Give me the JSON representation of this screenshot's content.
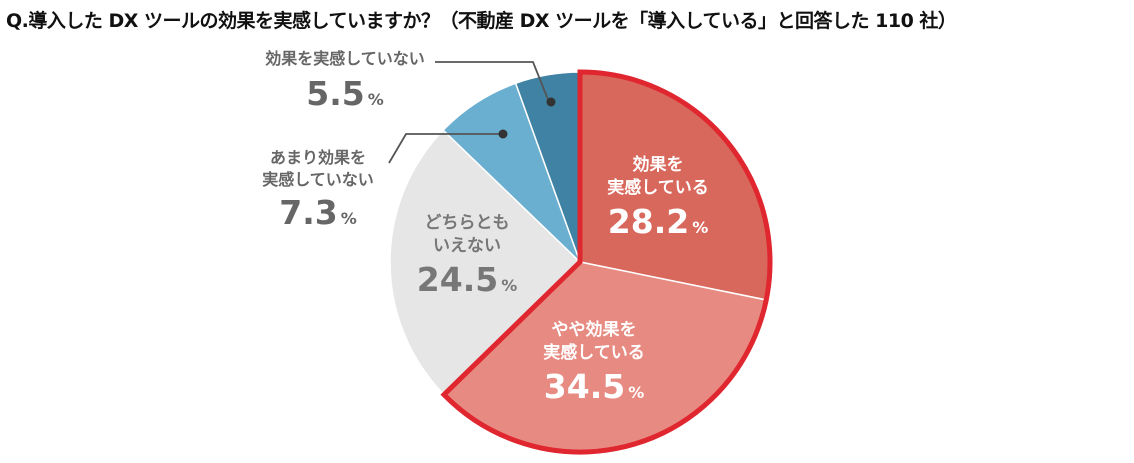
{
  "chart_data": {
    "type": "pie",
    "title": "Q.導入した DX ツールの効果を実感していますか？（不動産 DX ツールを「導入している」と回答した 110 社）",
    "unit": "%",
    "slices": [
      {
        "label_lines": [
          "効果を",
          "実感している"
        ],
        "value": 28.2,
        "value_text": "28.2",
        "color": "#d9685c"
      },
      {
        "label_lines": [
          "やや効果を",
          "実感している"
        ],
        "value": 34.5,
        "value_text": "34.5",
        "color": "#e78b82"
      },
      {
        "label_lines": [
          "どちらとも",
          "いえない"
        ],
        "value": 24.5,
        "value_text": "24.5",
        "color": "#e6e6e6"
      },
      {
        "label_lines": [
          "あまり効果を",
          "実感していない"
        ],
        "value": 7.3,
        "value_text": "7.3",
        "color": "#6aaed0"
      },
      {
        "label_lines": [
          "効果を実感していない"
        ],
        "value": 5.5,
        "value_text": "5.5",
        "color": "#3f82a3"
      }
    ],
    "highlight_color": "#e0262f"
  }
}
